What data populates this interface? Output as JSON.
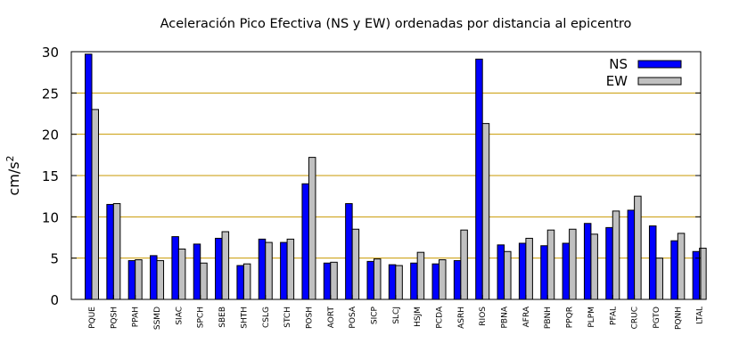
{
  "chart_data": {
    "type": "bar",
    "title": "Aceleración Pico Efectiva (NS y EW) ordenadas por distancia al epicentro",
    "ylabel": "cm/s",
    "ylabel_sup": "2",
    "xlabel": "",
    "ylim": [
      0,
      30
    ],
    "yticks": [
      0,
      5,
      10,
      15,
      20,
      25,
      30
    ],
    "grid": true,
    "legend_position": "top-right",
    "categories": [
      "PQUE",
      "PQSH",
      "PPAH",
      "SSMD",
      "SIAC",
      "SPCH",
      "SBEB",
      "SHTH",
      "CSLG",
      "STCH",
      "POSH",
      "AORT",
      "POSA",
      "SICP",
      "SLCJ",
      "HSJM",
      "PCDA",
      "ASRH",
      "RIOS",
      "PBNA",
      "AFRA",
      "PBNH",
      "PPQR",
      "PLPM",
      "PFAL",
      "CRUC",
      "PGTO",
      "PQNH",
      "LTAL"
    ],
    "series": [
      {
        "name": "NS",
        "color": "#0000ff",
        "values": [
          29.7,
          11.5,
          4.7,
          5.3,
          7.6,
          6.7,
          7.4,
          4.1,
          7.3,
          6.9,
          14.0,
          4.4,
          11.6,
          4.6,
          4.2,
          4.4,
          4.3,
          4.7,
          29.1,
          6.6,
          6.8,
          6.5,
          6.8,
          9.2,
          8.7,
          10.8,
          8.9,
          7.1,
          5.8
        ]
      },
      {
        "name": "EW",
        "color": "#c0c0c0",
        "values": [
          23.0,
          11.6,
          4.8,
          4.7,
          6.1,
          4.4,
          8.2,
          4.3,
          6.9,
          7.3,
          17.2,
          4.5,
          8.5,
          4.9,
          4.1,
          5.7,
          4.8,
          8.4,
          21.3,
          5.8,
          7.4,
          8.4,
          8.5,
          7.9,
          10.7,
          12.5,
          5.0,
          8.0,
          6.2
        ]
      }
    ]
  }
}
